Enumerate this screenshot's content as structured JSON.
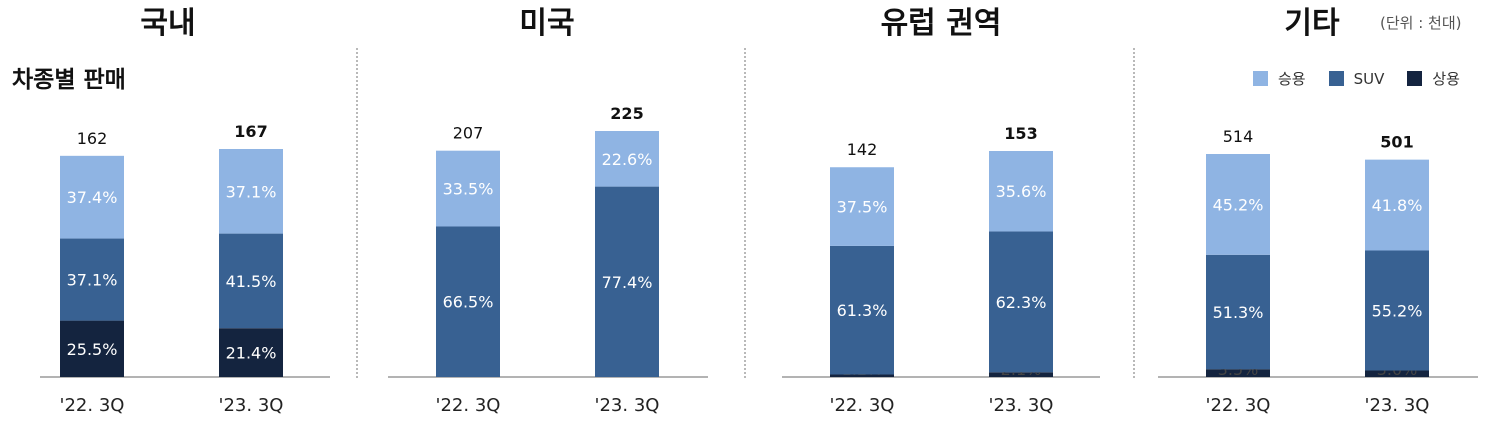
{
  "unit_note": "(단위 : 천대)",
  "subtitle": "차종별 판매",
  "colors": {
    "passenger": "#8fb4e3",
    "suv": "#386192",
    "commercial": "#14243f"
  },
  "legend": {
    "passenger": "승용",
    "suv": "SUV",
    "commercial": "상용"
  },
  "chart_data": [
    {
      "type": "bar",
      "stacked": true,
      "title": "국내",
      "categories": [
        "'22. 3Q",
        "'23. 3Q"
      ],
      "totals": [
        162,
        167
      ],
      "series": [
        {
          "name": "상용",
          "values": [
            "25.5%",
            "21.4%"
          ]
        },
        {
          "name": "SUV",
          "values": [
            "37.1%",
            "41.5%"
          ]
        },
        {
          "name": "승용",
          "values": [
            "37.4%",
            "37.1%"
          ]
        }
      ]
    },
    {
      "type": "bar",
      "stacked": true,
      "title": "미국",
      "categories": [
        "'22. 3Q",
        "'23. 3Q"
      ],
      "totals": [
        207,
        225
      ],
      "series": [
        {
          "name": "SUV",
          "values": [
            "66.5%",
            "77.4%"
          ]
        },
        {
          "name": "승용",
          "values": [
            "33.5%",
            "22.6%"
          ]
        }
      ]
    },
    {
      "type": "bar",
      "stacked": true,
      "title": "유럽 권역",
      "categories": [
        "'22. 3Q",
        "'23. 3Q"
      ],
      "totals": [
        142,
        153
      ],
      "series": [
        {
          "name": "상용",
          "values": [
            "1.2%",
            "2.1%"
          ]
        },
        {
          "name": "SUV",
          "values": [
            "61.3%",
            "62.3%"
          ]
        },
        {
          "name": "승용",
          "values": [
            "37.5%",
            "35.6%"
          ]
        }
      ]
    },
    {
      "type": "bar",
      "stacked": true,
      "title": "기타",
      "categories": [
        "'22. 3Q",
        "'23. 3Q"
      ],
      "totals": [
        514,
        501
      ],
      "series": [
        {
          "name": "상용",
          "values": [
            "3.5%",
            "3.0%"
          ]
        },
        {
          "name": "SUV",
          "values": [
            "51.3%",
            "55.2%"
          ]
        },
        {
          "name": "승용",
          "values": [
            "45.2%",
            "41.8%"
          ]
        }
      ]
    }
  ]
}
